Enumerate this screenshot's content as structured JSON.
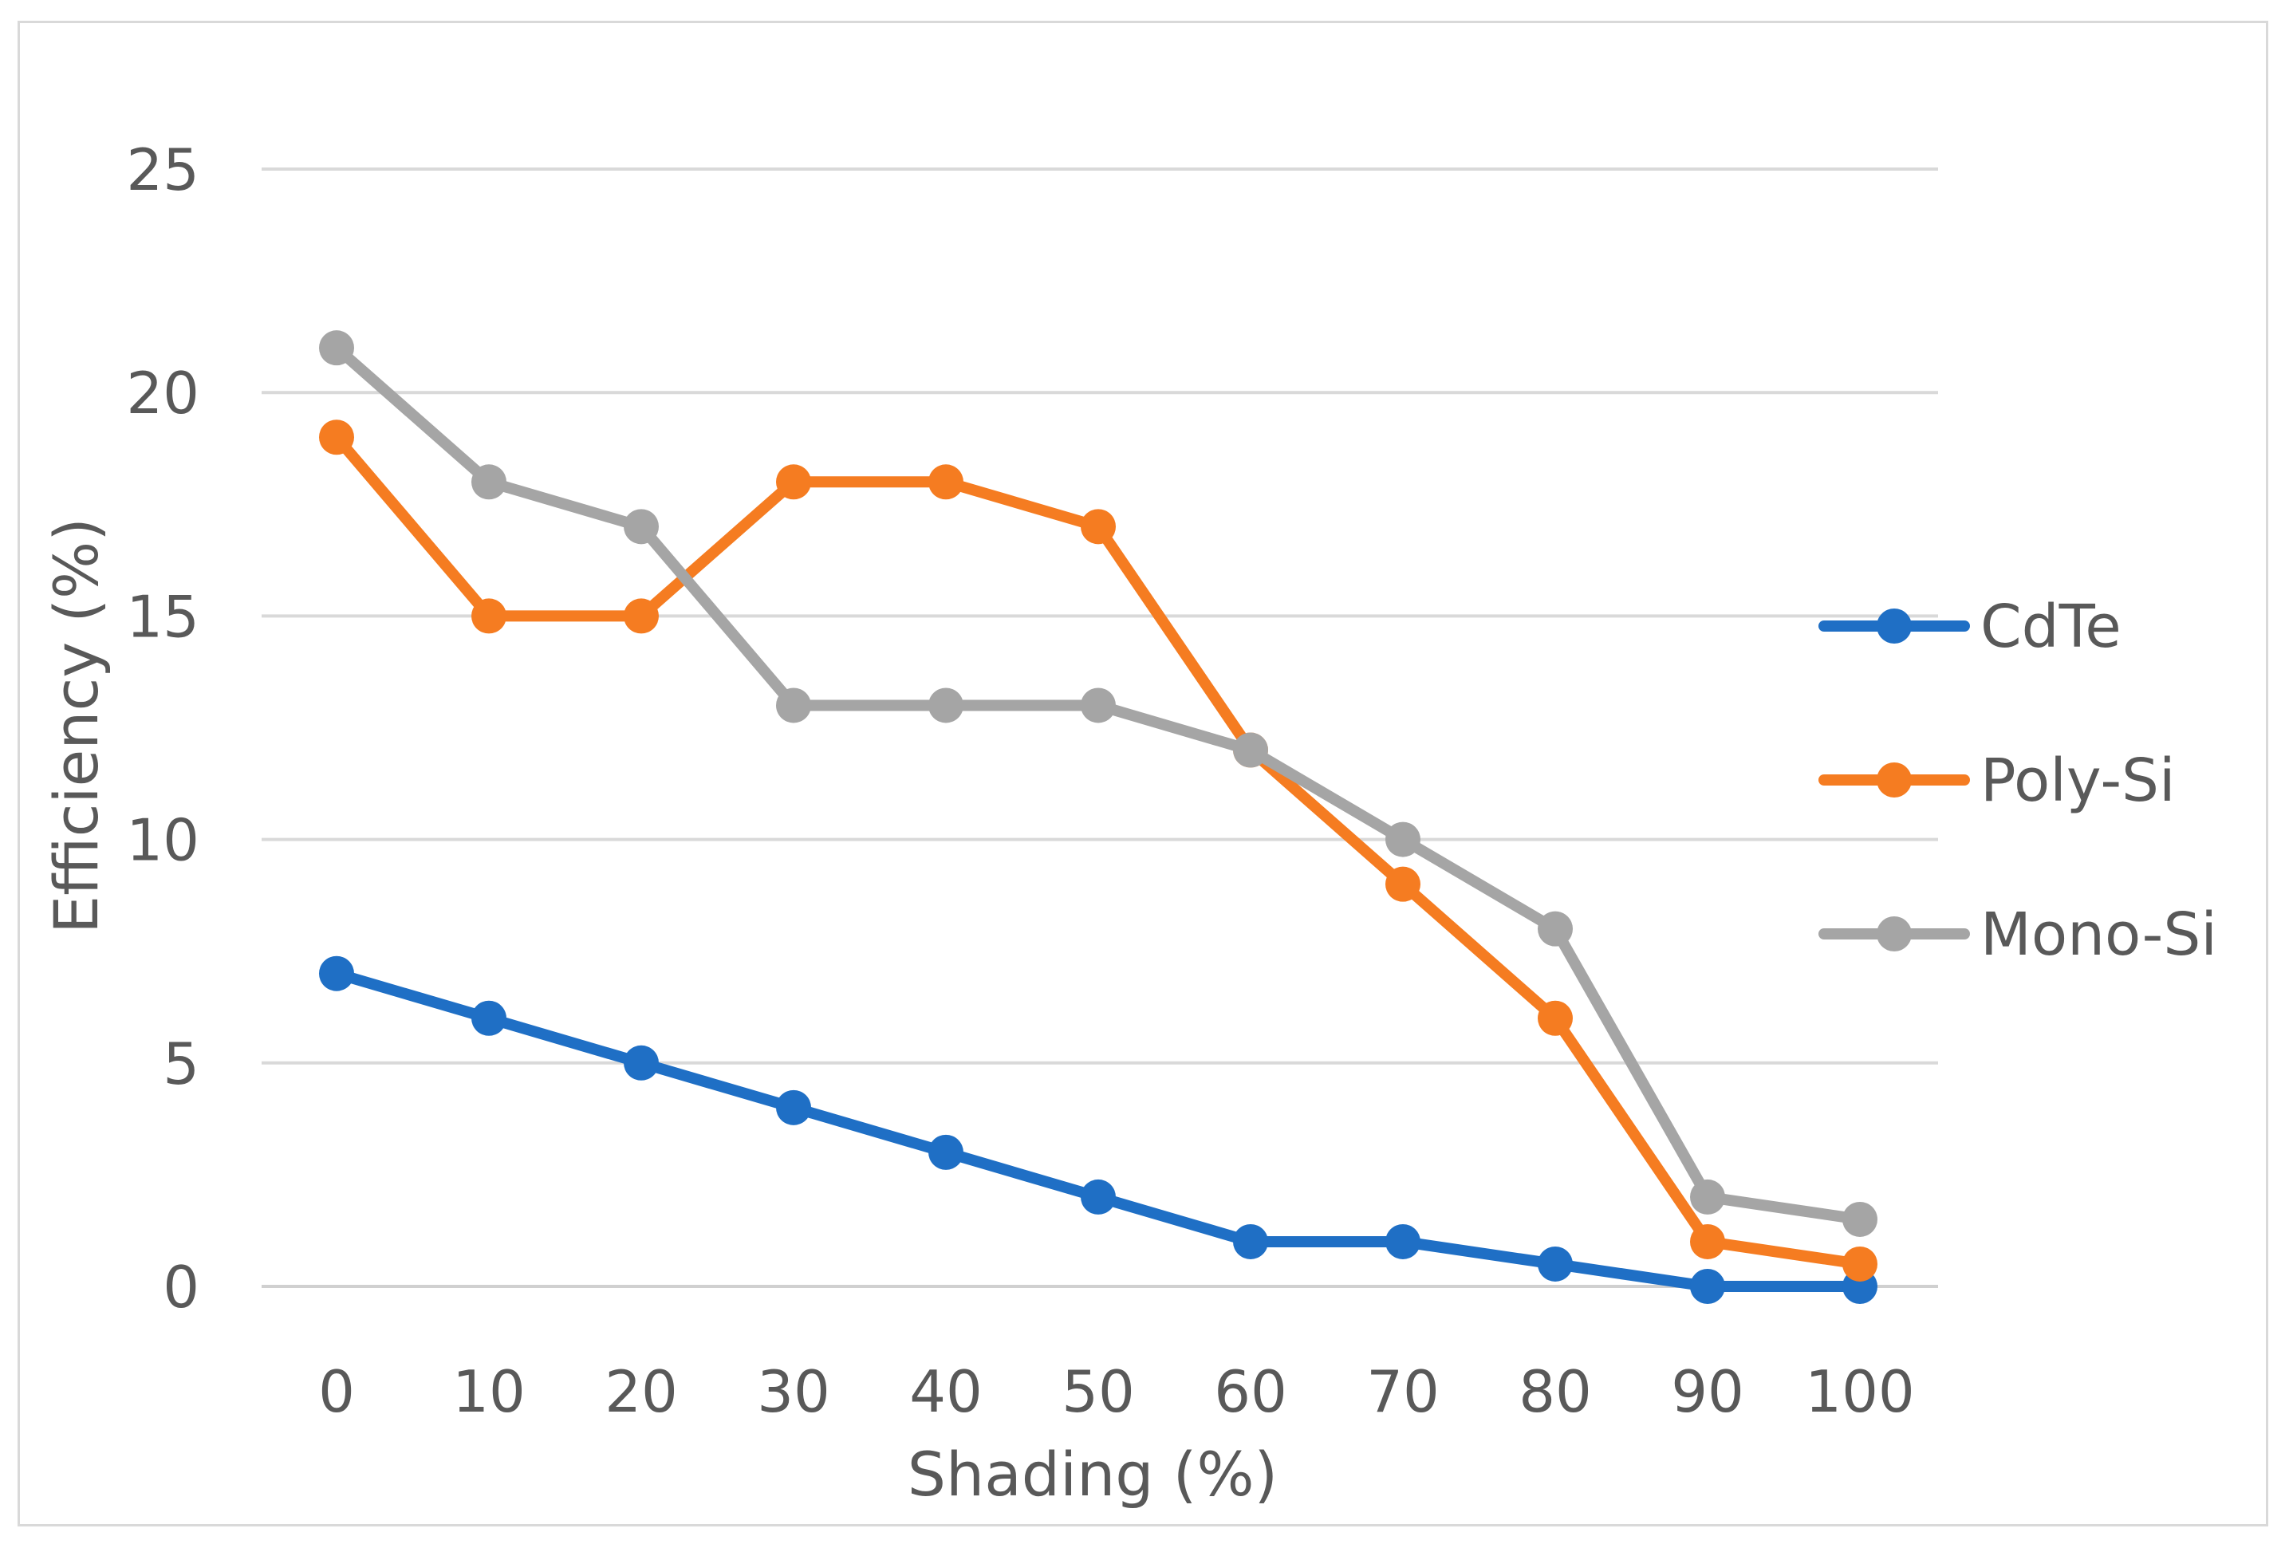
{
  "chart_data": {
    "type": "line",
    "title": "",
    "xlabel": "Shading (%)",
    "ylabel": "Efficiency (%)",
    "x": [
      0,
      10,
      20,
      30,
      40,
      50,
      60,
      70,
      80,
      90,
      100
    ],
    "x_tick_labels": [
      "0",
      "10",
      "20",
      "30",
      "40",
      "50",
      "60",
      "70",
      "80",
      "90",
      "100"
    ],
    "ylim": [
      0,
      25
    ],
    "y_ticks": [
      0,
      5,
      10,
      15,
      20,
      25
    ],
    "y_tick_labels": [
      "0",
      "5",
      "10",
      "15",
      "20",
      "25"
    ],
    "grid": true,
    "legend_position": "right",
    "series": [
      {
        "name": "CdTe",
        "color": "#1f6fc5",
        "values": [
          7,
          6,
          5,
          4,
          3,
          2,
          1,
          1,
          0.5,
          0,
          0
        ]
      },
      {
        "name": "Poly-Si",
        "color": "#f57c21",
        "values": [
          19,
          15,
          15,
          18,
          18,
          17,
          12,
          9,
          6,
          1,
          0.5
        ]
      },
      {
        "name": "Mono-Si",
        "color": "#a5a5a5",
        "values": [
          21,
          18,
          17,
          13,
          13,
          13,
          12,
          10,
          8,
          2,
          1.5
        ]
      }
    ]
  }
}
